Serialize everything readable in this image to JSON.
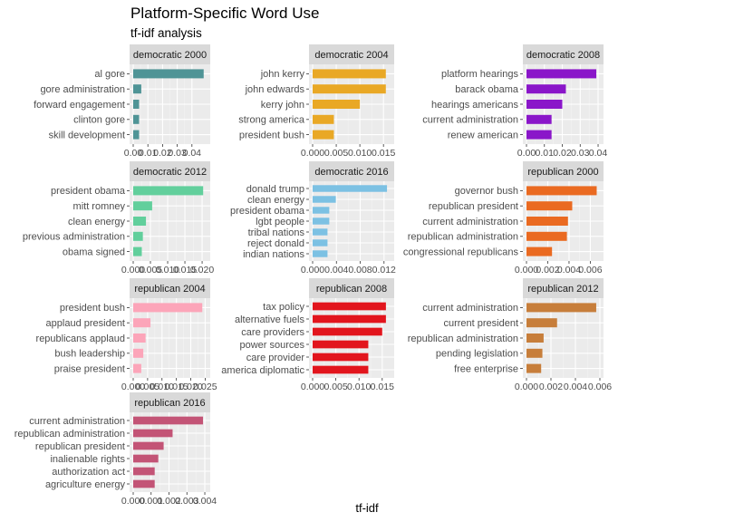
{
  "title": "Platform-Specific Word Use",
  "subtitle": "tf-idf analysis",
  "xlabel": "tf-idf",
  "chart_data": [
    {
      "type": "bar",
      "orientation": "horizontal",
      "facet": "democratic 2000",
      "color": "#4f9496",
      "categories": [
        "al gore",
        "gore administration",
        "forward engagement",
        "clinton gore",
        "skill development"
      ],
      "values": [
        0.048,
        0.0055,
        0.004,
        0.004,
        0.004
      ],
      "xlim": [
        0,
        0.05
      ],
      "ticks": [
        0.0,
        0.01,
        0.02,
        0.03,
        0.04
      ],
      "tick_labels": [
        "0.00",
        "0.01",
        "0.02",
        "0.03",
        "0.04"
      ]
    },
    {
      "type": "bar",
      "orientation": "horizontal",
      "facet": "democratic 2004",
      "color": "#e9a825",
      "categories": [
        "john kerry",
        "john edwards",
        "kerry john",
        "strong america",
        "president bush"
      ],
      "values": [
        0.0155,
        0.0155,
        0.01,
        0.0045,
        0.0045
      ],
      "xlim": [
        0,
        0.0165
      ],
      "ticks": [
        0.0,
        0.005,
        0.01,
        0.015
      ],
      "tick_labels": [
        "0.000",
        "0.005",
        "0.010",
        "0.015"
      ]
    },
    {
      "type": "bar",
      "orientation": "horizontal",
      "facet": "democratic 2008",
      "color": "#8a16c9",
      "categories": [
        "platform hearings",
        "barack obama",
        "hearings americans",
        "current administration",
        "renew american"
      ],
      "values": [
        0.039,
        0.022,
        0.02,
        0.014,
        0.014
      ],
      "xlim": [
        0,
        0.041
      ],
      "ticks": [
        0.0,
        0.01,
        0.02,
        0.03,
        0.04
      ],
      "tick_labels": [
        "0.00",
        "0.01",
        "0.02",
        "0.03",
        "0.04"
      ]
    },
    {
      "type": "bar",
      "orientation": "horizontal",
      "facet": "democratic 2012",
      "color": "#62cf9c",
      "categories": [
        "president obama",
        "mitt romney",
        "clean energy",
        "previous administration",
        "obama signed"
      ],
      "values": [
        0.0203,
        0.0055,
        0.0037,
        0.0028,
        0.0025
      ],
      "xlim": [
        0,
        0.0213
      ],
      "ticks": [
        0.0,
        0.005,
        0.01,
        0.015,
        0.02
      ],
      "tick_labels": [
        "0.000",
        "0.005",
        "0.010",
        "0.015",
        "0.020"
      ]
    },
    {
      "type": "bar",
      "orientation": "horizontal",
      "facet": "democratic 2016",
      "color": "#7cc1e3",
      "categories": [
        "donald trump",
        "clean energy",
        "president obama",
        "lgbt people",
        "tribal nations",
        "reject donald",
        "indian nations"
      ],
      "values": [
        0.0125,
        0.0039,
        0.0028,
        0.0028,
        0.0025,
        0.0025,
        0.0025
      ],
      "xlim": [
        0,
        0.0131
      ],
      "ticks": [
        0.0,
        0.004,
        0.008,
        0.012
      ],
      "tick_labels": [
        "0.000",
        "0.004",
        "0.008",
        "0.012"
      ]
    },
    {
      "type": "bar",
      "orientation": "horizontal",
      "facet": "republican 2000",
      "color": "#ea6a21",
      "categories": [
        "governor bush",
        "republican president",
        "current administration",
        "republican administration",
        "congressional republicans"
      ],
      "values": [
        0.0066,
        0.0043,
        0.0039,
        0.0038,
        0.0024
      ],
      "xlim": [
        0,
        0.0069
      ],
      "ticks": [
        0.0,
        0.002,
        0.004,
        0.006
      ],
      "tick_labels": [
        "0.000",
        "0.002",
        "0.004",
        "0.006"
      ]
    },
    {
      "type": "bar",
      "orientation": "horizontal",
      "facet": "republican 2004",
      "color": "#fca5b9",
      "categories": [
        "president bush",
        "applaud president",
        "republicans applaud",
        "bush leadership",
        "praise president"
      ],
      "values": [
        0.024,
        0.006,
        0.0043,
        0.0035,
        0.0028
      ],
      "xlim": [
        0,
        0.0255
      ],
      "ticks": [
        0.0,
        0.005,
        0.01,
        0.015,
        0.02,
        0.025
      ],
      "tick_labels": [
        "0.000",
        "0.005",
        "0.010",
        "0.015",
        "0.020",
        "0.025"
      ]
    },
    {
      "type": "bar",
      "orientation": "horizontal",
      "facet": "republican 2008",
      "color": "#e2151d",
      "categories": [
        "tax policy",
        "alternative fuels",
        "care providers",
        "power sources",
        "care provider",
        "america diplomatic"
      ],
      "values": [
        0.0158,
        0.0158,
        0.015,
        0.012,
        0.012,
        0.012
      ],
      "xlim": [
        0,
        0.0168
      ],
      "ticks": [
        0.0,
        0.005,
        0.01,
        0.015
      ],
      "tick_labels": [
        "0.000",
        "0.005",
        "0.010",
        "0.015"
      ]
    },
    {
      "type": "bar",
      "orientation": "horizontal",
      "facet": "republican 2012",
      "color": "#c77e3b",
      "categories": [
        "current administration",
        "current president",
        "republican administration",
        "pending legislation",
        "free enterprise"
      ],
      "values": [
        0.0057,
        0.0025,
        0.0014,
        0.0013,
        0.0012
      ],
      "xlim": [
        0,
        0.006
      ],
      "ticks": [
        0.0,
        0.002,
        0.004,
        0.006
      ],
      "tick_labels": [
        "0.000",
        "0.002",
        "0.004",
        "0.006"
      ]
    },
    {
      "type": "bar",
      "orientation": "horizontal",
      "facet": "republican 2016",
      "color": "#c35476",
      "categories": [
        "current administration",
        "republican administration",
        "republican president",
        "inalienable rights",
        "authorization act",
        "agriculture energy"
      ],
      "values": [
        0.0039,
        0.0022,
        0.0017,
        0.0014,
        0.0012,
        0.0012
      ],
      "xlim": [
        0,
        0.0041
      ],
      "ticks": [
        0.0,
        0.001,
        0.002,
        0.003,
        0.004
      ],
      "tick_labels": [
        "0.000",
        "0.001",
        "0.002",
        "0.003",
        "0.004"
      ]
    }
  ]
}
